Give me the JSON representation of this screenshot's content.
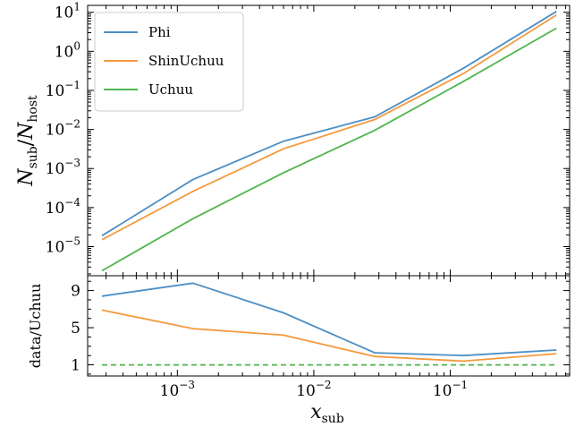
{
  "chart_data": [
    {
      "type": "line",
      "panel": "top",
      "xscale": "log",
      "yscale": "log",
      "xlim": [
        0.00022,
        0.75
      ],
      "ylim": [
        1.8e-06,
        15
      ],
      "ylabel": "N_sub/N_host",
      "ylabel_parts": {
        "n1": "N",
        "s1": "sub",
        "slash": "/",
        "n2": "N",
        "s2": "host"
      },
      "yticks": [
        {
          "value": 1e-05,
          "base": "10",
          "exp": "−5"
        },
        {
          "value": 0.0001,
          "base": "10",
          "exp": "−4"
        },
        {
          "value": 0.001,
          "base": "10",
          "exp": "−3"
        },
        {
          "value": 0.01,
          "base": "10",
          "exp": "−2"
        },
        {
          "value": 0.1,
          "base": "10",
          "exp": "−1"
        },
        {
          "value": 1,
          "base": "10",
          "exp": "0"
        },
        {
          "value": 10,
          "base": "10",
          "exp": "1"
        }
      ],
      "legend_position": "upper-left",
      "series": [
        {
          "name": "Phi",
          "color": "#4d8fc4",
          "x": [
            0.00028,
            0.0013,
            0.006,
            0.028,
            0.125,
            0.6
          ],
          "y": [
            1.9e-05,
            0.00052,
            0.005,
            0.021,
            0.37,
            10.5
          ]
        },
        {
          "name": "ShinUchuu",
          "color": "#f5993d",
          "x": [
            0.00028,
            0.0013,
            0.006,
            0.028,
            0.125,
            0.6
          ],
          "y": [
            1.5e-05,
            0.00026,
            0.0032,
            0.018,
            0.27,
            8.5
          ]
        },
        {
          "name": "Uchuu",
          "color": "#4fb54f",
          "x": [
            0.00028,
            0.0013,
            0.006,
            0.028,
            0.125,
            0.6
          ],
          "y": [
            2.4e-06,
            5.2e-05,
            0.00078,
            0.0095,
            0.17,
            3.9
          ]
        }
      ]
    },
    {
      "type": "line",
      "panel": "bottom",
      "xscale": "log",
      "yscale": "linear",
      "xlim": [
        0.00022,
        0.75
      ],
      "ylim": [
        -0.2,
        10.6
      ],
      "ylabel": "data/Uchuu",
      "xlabel": "x_sub",
      "xlabel_parts": {
        "main": "x",
        "sub": "sub"
      },
      "xticks": [
        {
          "value": 0.001,
          "base": "10",
          "exp": "−3"
        },
        {
          "value": 0.01,
          "base": "10",
          "exp": "−2"
        },
        {
          "value": 0.1,
          "base": "10",
          "exp": "−1"
        }
      ],
      "yticks": [
        {
          "value": 1,
          "label": "1"
        },
        {
          "value": 5,
          "label": "5"
        },
        {
          "value": 9,
          "label": "9"
        }
      ],
      "series": [
        {
          "name": "Phi",
          "color": "#4d8fc4",
          "dashed": false,
          "x": [
            0.00028,
            0.0013,
            0.006,
            0.028,
            0.125,
            0.6
          ],
          "y": [
            8.4,
            9.8,
            6.6,
            2.3,
            2.0,
            2.6
          ]
        },
        {
          "name": "ShinUchuu",
          "color": "#f5993d",
          "dashed": false,
          "x": [
            0.00028,
            0.0013,
            0.006,
            0.028,
            0.125,
            0.6
          ],
          "y": [
            6.9,
            4.9,
            4.2,
            1.9,
            1.4,
            2.2
          ]
        },
        {
          "name": "Uchuu",
          "color": "#4fb54f",
          "dashed": true,
          "x": [
            0.00028,
            0.0013,
            0.006,
            0.028,
            0.125,
            0.6
          ],
          "y": [
            1,
            1,
            1,
            1,
            1,
            1
          ]
        }
      ]
    }
  ]
}
